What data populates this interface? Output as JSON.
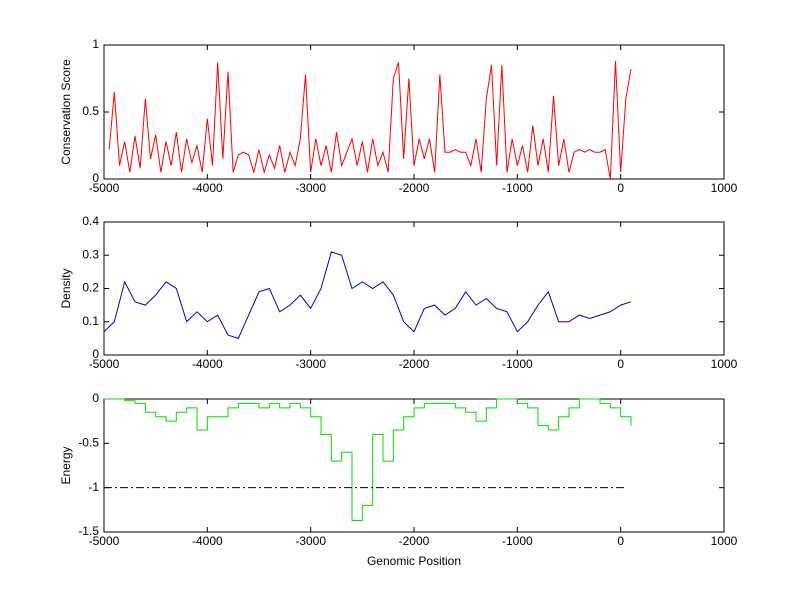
{
  "chart_data": [
    {
      "type": "line",
      "ylabel": "Conservation Score",
      "x": [
        -4950,
        -4900,
        -4850,
        -4800,
        -4750,
        -4700,
        -4650,
        -4600,
        -4550,
        -4500,
        -4450,
        -4400,
        -4350,
        -4300,
        -4250,
        -4200,
        -4150,
        -4100,
        -4050,
        -4000,
        -3950,
        -3900,
        -3850,
        -3800,
        -3750,
        -3700,
        -3650,
        -3600,
        -3550,
        -3500,
        -3450,
        -3400,
        -3350,
        -3300,
        -3250,
        -3200,
        -3150,
        -3100,
        -3050,
        -3000,
        -2950,
        -2900,
        -2850,
        -2800,
        -2750,
        -2700,
        -2650,
        -2600,
        -2550,
        -2500,
        -2450,
        -2400,
        -2350,
        -2300,
        -2250,
        -2200,
        -2150,
        -2100,
        -2050,
        -2000,
        -1950,
        -1900,
        -1850,
        -1800,
        -1750,
        -1700,
        -1650,
        -1600,
        -1550,
        -1500,
        -1450,
        -1400,
        -1350,
        -1300,
        -1250,
        -1200,
        -1150,
        -1100,
        -1050,
        -1000,
        -950,
        -900,
        -850,
        -800,
        -750,
        -700,
        -650,
        -600,
        -550,
        -500,
        -450,
        -400,
        -350,
        -300,
        -250,
        -200,
        -150,
        -100,
        -50,
        0,
        50,
        100
      ],
      "series": [
        {
          "color": "#ff0000",
          "values": [
            0.22,
            0.65,
            0.1,
            0.28,
            0.05,
            0.32,
            0.08,
            0.6,
            0.15,
            0.33,
            0.05,
            0.28,
            0.1,
            0.35,
            0.05,
            0.3,
            0.12,
            0.25,
            0.05,
            0.45,
            0.1,
            0.87,
            0.15,
            0.8,
            0.05,
            0.18,
            0.2,
            0.18,
            0.05,
            0.22,
            0.05,
            0.18,
            0.08,
            0.25,
            0.05,
            0.2,
            0.1,
            0.3,
            0.78,
            0.05,
            0.3,
            0.1,
            0.25,
            0.05,
            0.35,
            0.1,
            0.2,
            0.3,
            0.1,
            0.28,
            0.05,
            0.3,
            0.1,
            0.2,
            0.05,
            0.75,
            0.87,
            0.15,
            0.75,
            0.1,
            0.3,
            0.15,
            0.3,
            0.05,
            0.78,
            0.2,
            0.2,
            0.22,
            0.2,
            0.2,
            0.1,
            0.3,
            0.05,
            0.6,
            0.85,
            0.1,
            0.85,
            0.05,
            0.3,
            0.1,
            0.25,
            0.05,
            0.4,
            0.1,
            0.3,
            0.05,
            0.62,
            0.1,
            0.3,
            0.05,
            0.2,
            0.22,
            0.2,
            0.22,
            0.2,
            0.2,
            0.22,
            0.0,
            0.88,
            0.05,
            0.6,
            0.82
          ]
        }
      ],
      "xlim": [
        -5000,
        1000
      ],
      "xticks": [
        -5000,
        -4000,
        -3000,
        -2000,
        -1000,
        0,
        1000
      ],
      "ylim": [
        0,
        1
      ],
      "yticks": [
        0,
        0.5,
        1
      ]
    },
    {
      "type": "line",
      "ylabel": "Density",
      "x": [
        -5000,
        -4900,
        -4800,
        -4700,
        -4600,
        -4500,
        -4400,
        -4300,
        -4200,
        -4100,
        -4000,
        -3900,
        -3800,
        -3700,
        -3600,
        -3500,
        -3400,
        -3300,
        -3200,
        -3100,
        -3000,
        -2900,
        -2800,
        -2700,
        -2600,
        -2500,
        -2400,
        -2300,
        -2200,
        -2100,
        -2000,
        -1900,
        -1800,
        -1700,
        -1600,
        -1500,
        -1400,
        -1300,
        -1200,
        -1100,
        -1000,
        -900,
        -800,
        -700,
        -600,
        -500,
        -400,
        -300,
        -200,
        -100,
        0,
        100
      ],
      "series": [
        {
          "color": "#0000cc",
          "values": [
            0.07,
            0.1,
            0.22,
            0.16,
            0.15,
            0.18,
            0.22,
            0.2,
            0.1,
            0.13,
            0.1,
            0.12,
            0.06,
            0.05,
            0.12,
            0.19,
            0.2,
            0.13,
            0.15,
            0.18,
            0.14,
            0.2,
            0.31,
            0.3,
            0.2,
            0.22,
            0.2,
            0.22,
            0.18,
            0.1,
            0.07,
            0.14,
            0.15,
            0.12,
            0.14,
            0.19,
            0.15,
            0.17,
            0.14,
            0.13,
            0.07,
            0.1,
            0.15,
            0.19,
            0.1,
            0.1,
            0.12,
            0.11,
            0.12,
            0.13,
            0.15,
            0.16
          ]
        }
      ],
      "xlim": [
        -5000,
        1000
      ],
      "xticks": [
        -5000,
        -4000,
        -3000,
        -2000,
        -1000,
        0,
        1000
      ],
      "ylim": [
        0,
        0.4
      ],
      "yticks": [
        0,
        0.1,
        0.2,
        0.3,
        0.4
      ]
    },
    {
      "type": "line",
      "ylabel": "Energy",
      "xlabel": "Genomic Position",
      "drawstyle": "steps",
      "x": [
        -5000,
        -4900,
        -4800,
        -4700,
        -4600,
        -4500,
        -4400,
        -4300,
        -4200,
        -4100,
        -4000,
        -3900,
        -3800,
        -3700,
        -3600,
        -3500,
        -3400,
        -3300,
        -3200,
        -3100,
        -3000,
        -2900,
        -2800,
        -2700,
        -2600,
        -2500,
        -2400,
        -2300,
        -2200,
        -2100,
        -2000,
        -1900,
        -1800,
        -1700,
        -1600,
        -1500,
        -1400,
        -1300,
        -1200,
        -1100,
        -1000,
        -900,
        -800,
        -700,
        -600,
        -500,
        -400,
        -300,
        -200,
        -100,
        0,
        100
      ],
      "series": [
        {
          "color": "#00dd00",
          "values": [
            0,
            0,
            -0.02,
            -0.05,
            -0.15,
            -0.2,
            -0.25,
            -0.15,
            -0.1,
            -0.35,
            -0.2,
            -0.2,
            -0.1,
            -0.05,
            -0.05,
            -0.1,
            -0.05,
            -0.1,
            -0.05,
            -0.1,
            -0.2,
            -0.4,
            -0.7,
            -0.6,
            -1.37,
            -1.2,
            -0.4,
            -0.7,
            -0.35,
            -0.2,
            -0.1,
            -0.05,
            -0.05,
            -0.05,
            -0.1,
            -0.15,
            -0.25,
            -0.1,
            0,
            0,
            -0.05,
            -0.1,
            -0.3,
            -0.35,
            -0.2,
            -0.1,
            0,
            0,
            -0.05,
            -0.1,
            -0.2,
            -0.3
          ]
        }
      ],
      "reference_line": {
        "y": -1,
        "x": [
          -5000,
          50
        ],
        "style": "dash-dot",
        "color": "#000000"
      },
      "xlim": [
        -5000,
        1000
      ],
      "xticks": [
        -5000,
        -4000,
        -3000,
        -2000,
        -1000,
        0,
        1000
      ],
      "ylim": [
        -1.5,
        0
      ],
      "yticks": [
        -1.5,
        -1,
        -0.5,
        0
      ]
    }
  ]
}
